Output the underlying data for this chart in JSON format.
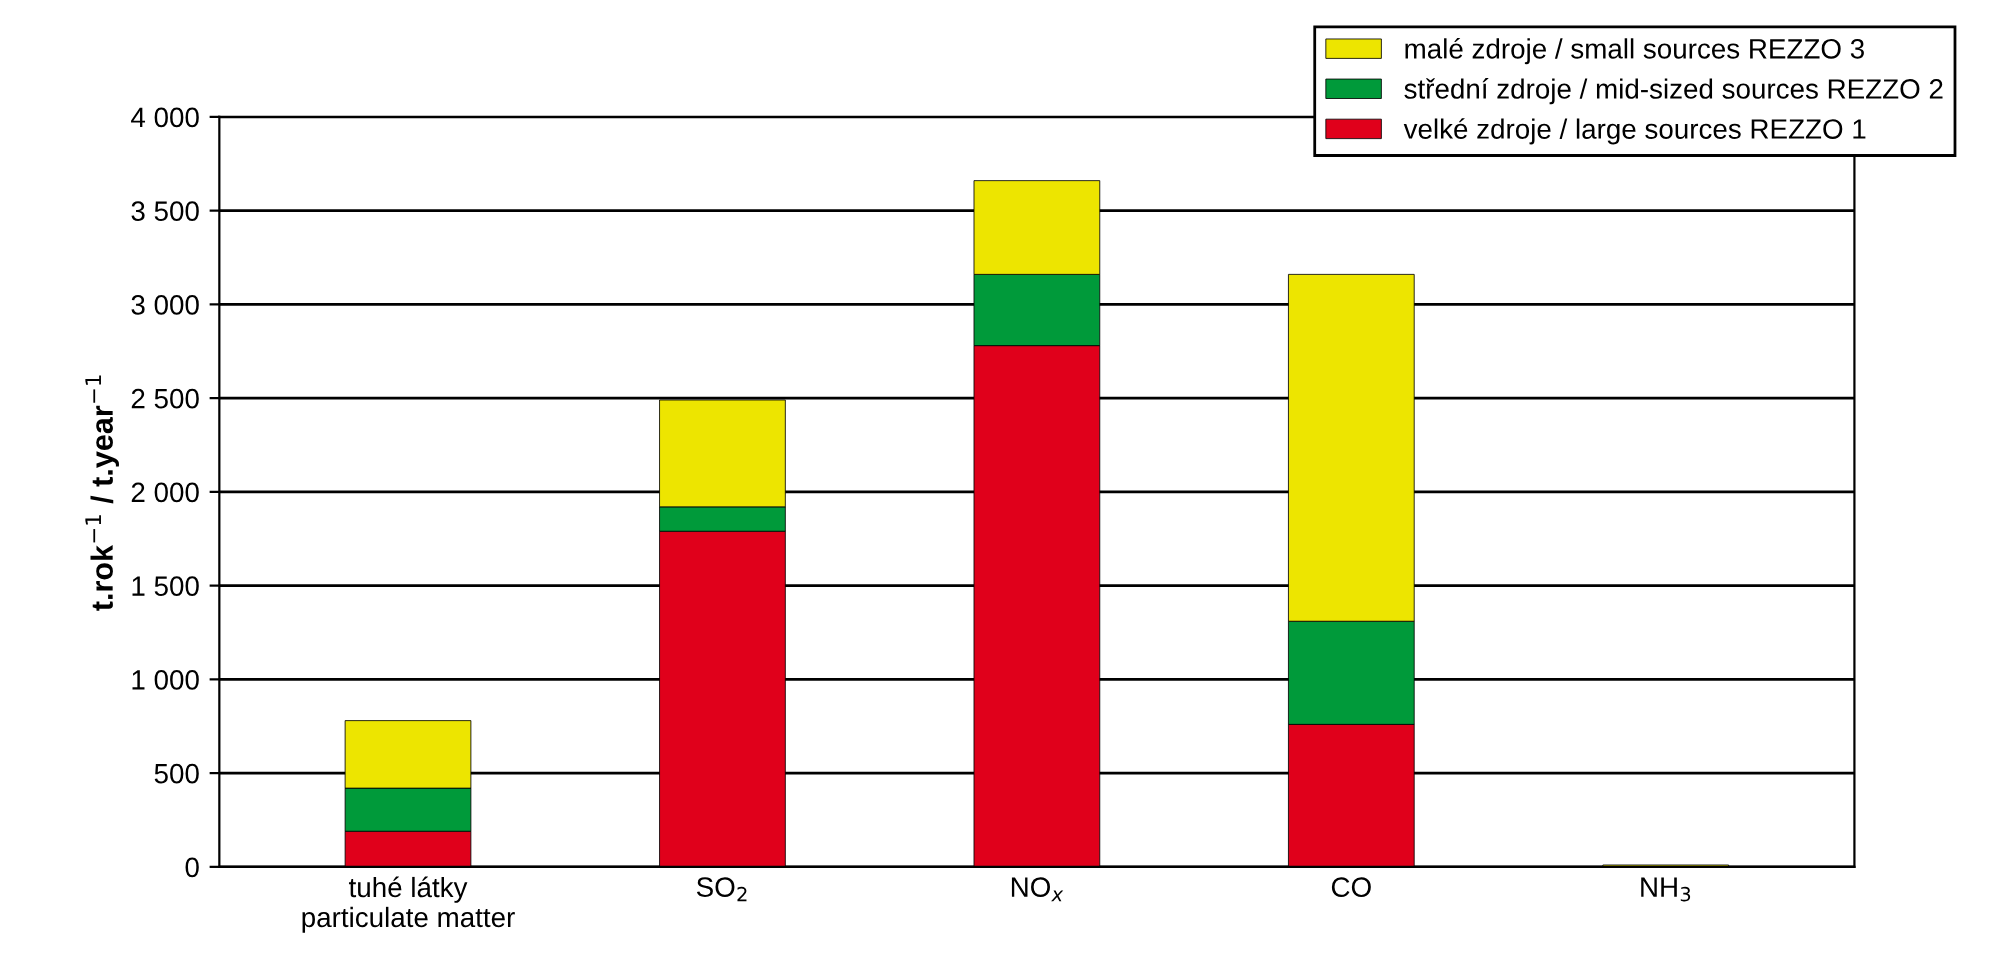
{
  "chart_data": {
    "type": "bar",
    "stacked": true,
    "ylabel": "t.rok$^{−1}$ / t.year$^{−1}$",
    "categories": [
      "tuhé látky\nparticulate matter",
      "SO$_{2}$",
      "NO$_{x}$",
      "CO",
      "NH$_{3}$"
    ],
    "series": [
      {
        "name": "velké zdroje / large sources REZZO 1",
        "color": "#e0001b",
        "values": [
          190,
          1790,
          2780,
          760,
          0
        ]
      },
      {
        "name": "střední zdroje / mid-sized sources REZZO 2",
        "color": "#009a3a",
        "values": [
          230,
          130,
          380,
          550,
          0
        ]
      },
      {
        "name": "malé zdroje / small sources REZZO 3",
        "color": "#ede500",
        "values": [
          360,
          570,
          500,
          1850,
          10
        ]
      }
    ],
    "ylim": [
      0,
      4000
    ],
    "yticks": [
      0,
      500,
      {
        "value": 1000,
        "label": "1 000"
      },
      {
        "value": 1500,
        "label": "1 500"
      },
      {
        "value": 2000,
        "label": "2 000"
      },
      {
        "value": 2500,
        "label": "2 500"
      },
      {
        "value": 3000,
        "label": "3 000"
      },
      {
        "value": 3500,
        "label": "3 500"
      },
      {
        "value": 4000,
        "label": "4 000"
      }
    ],
    "grid": "y",
    "legend": "top right"
  }
}
